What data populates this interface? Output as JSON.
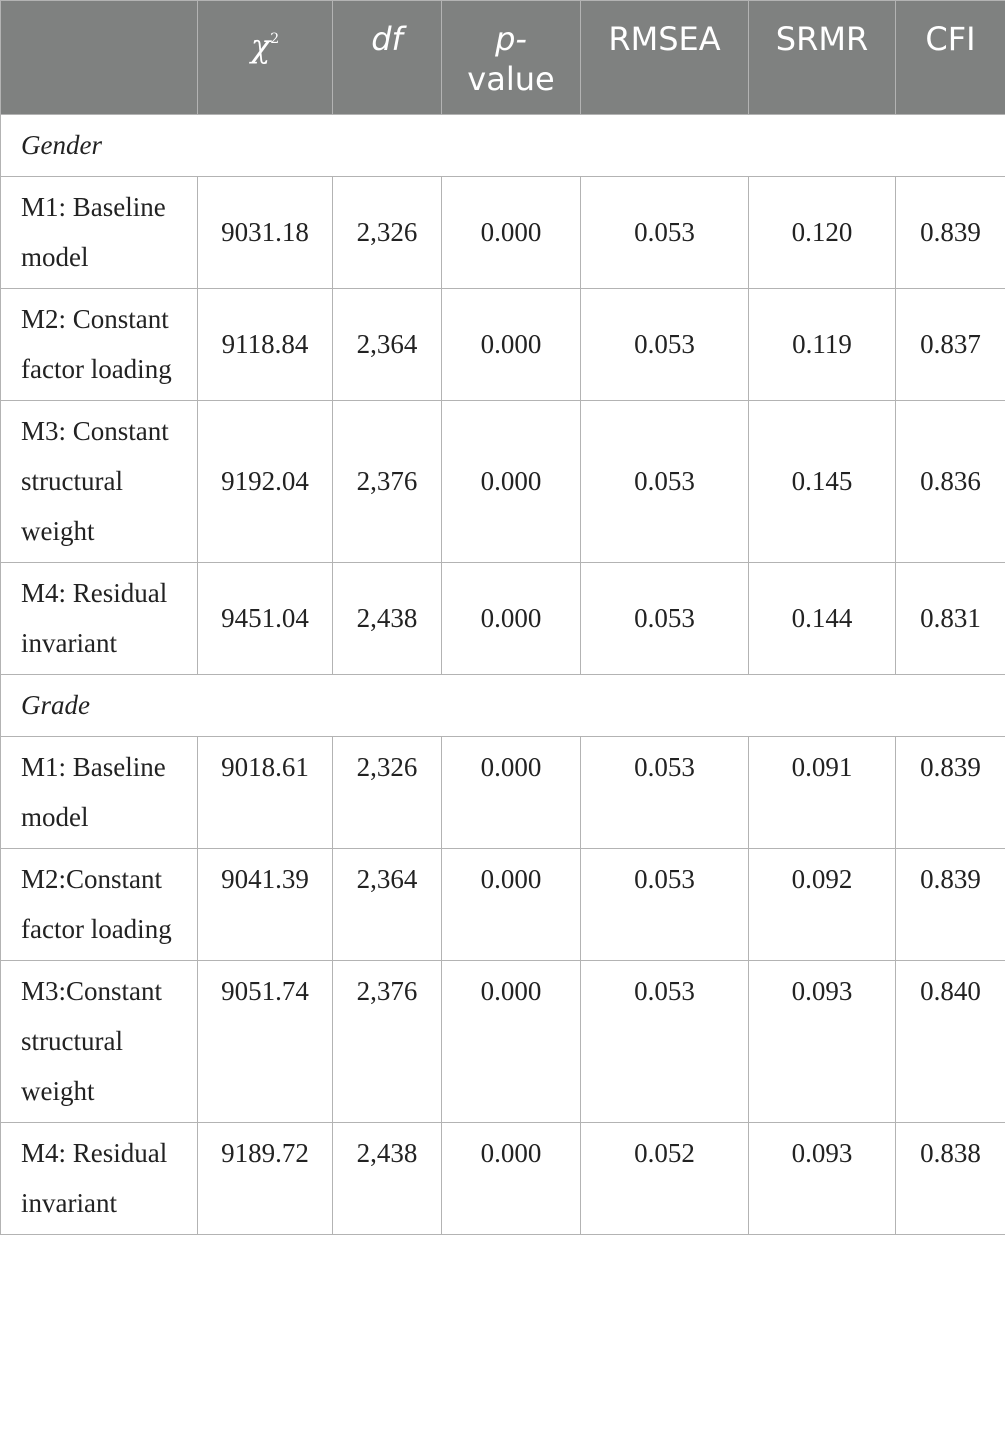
{
  "header": {
    "model": "",
    "chi2": "χ",
    "chi2_sup": "2",
    "df": "df",
    "p_value_line1": "p-",
    "p_value_line2": "value",
    "rmsea": "RMSEA",
    "srmr": "SRMR",
    "cfi": "CFI"
  },
  "groups": [
    {
      "name": "Gender",
      "rows": [
        {
          "label": "M1: Baseline model",
          "chi2": "9031.18",
          "df": "2,326",
          "p": "0.000",
          "rmsea": "0.053",
          "srmr": "0.120",
          "cfi": "0.839"
        },
        {
          "label": "M2: Constant factor loading",
          "chi2": "9118.84",
          "df": "2,364",
          "p": "0.000",
          "rmsea": "0.053",
          "srmr": "0.119",
          "cfi": "0.837"
        },
        {
          "label": "M3: Constant structural weight",
          "chi2": "9192.04",
          "df": "2,376",
          "p": "0.000",
          "rmsea": "0.053",
          "srmr": "0.145",
          "cfi": "0.836"
        },
        {
          "label": "M4: Residual invariant",
          "chi2": "9451.04",
          "df": "2,438",
          "p": "0.000",
          "rmsea": "0.053",
          "srmr": "0.144",
          "cfi": "0.831"
        }
      ]
    },
    {
      "name": "Grade",
      "rows": [
        {
          "label": "M1: Baseline model",
          "chi2": "9018.61",
          "df": "2,326",
          "p": "0.000",
          "rmsea": "0.053",
          "srmr": "0.091",
          "cfi": "0.839"
        },
        {
          "label": "M2:Constant factor loading",
          "chi2": "9041.39",
          "df": "2,364",
          "p": "0.000",
          "rmsea": "0.053",
          "srmr": "0.092",
          "cfi": "0.839"
        },
        {
          "label": "M3:Constant structural weight",
          "chi2": "9051.74",
          "df": "2,376",
          "p": "0.000",
          "rmsea": "0.053",
          "srmr": "0.093",
          "cfi": "0.840"
        },
        {
          "label": "M4: Residual invariant",
          "chi2": "9189.72",
          "df": "2,438",
          "p": "0.000",
          "rmsea": "0.052",
          "srmr": "0.093",
          "cfi": "0.838"
        }
      ]
    }
  ]
}
